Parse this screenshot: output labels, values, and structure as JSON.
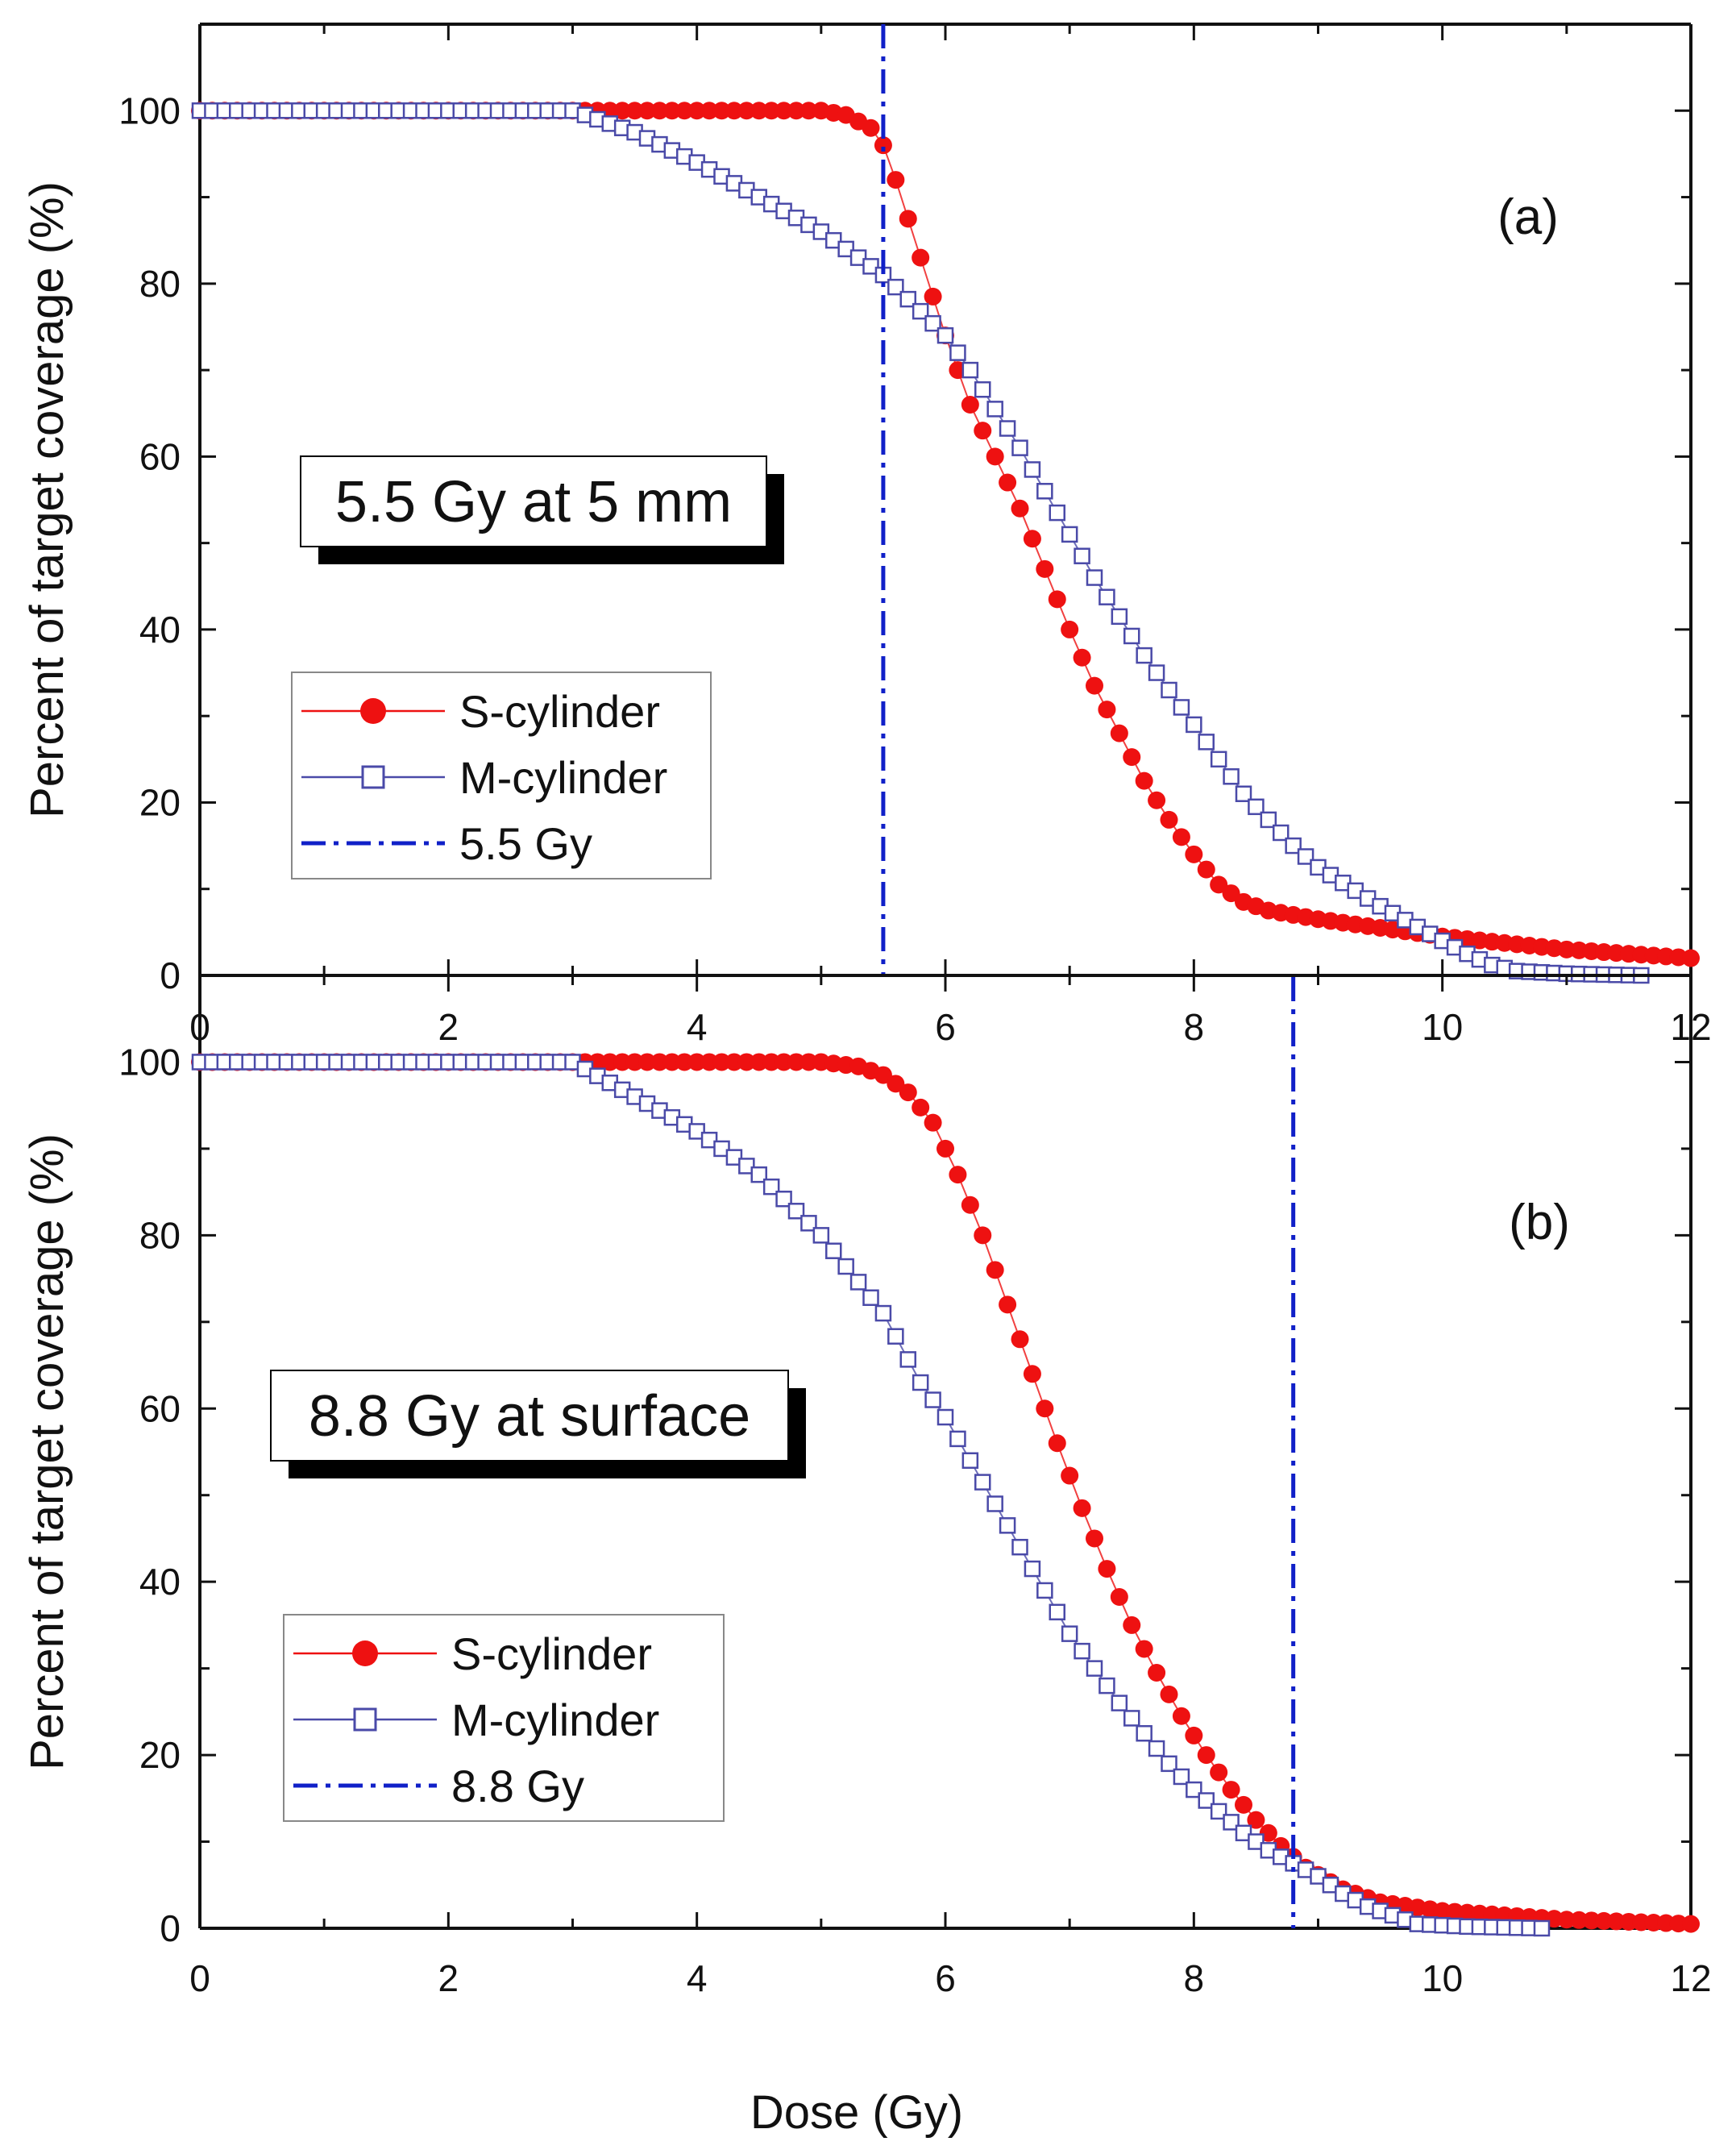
{
  "figure": {
    "xlabel": "Dose (Gy)"
  },
  "colors": {
    "s_series": "#ee1111",
    "m_series": "#4a4aa8",
    "ref_line": "#1020c8",
    "axis": "#111111"
  },
  "chart_data": [
    {
      "type": "line",
      "panel_label": "(a)",
      "callout": "5.5 Gy at 5 mm",
      "ylabel": "Percent of target coverage (%)",
      "xlim": [
        0,
        12
      ],
      "ylim": [
        0,
        110
      ],
      "x_ticks": [
        "0",
        "2",
        "4",
        "6",
        "8",
        "10",
        "12"
      ],
      "y_ticks": [
        "0",
        "20",
        "40",
        "60",
        "80",
        "100"
      ],
      "reference_line": {
        "x": 5.5,
        "label": "5.5 Gy"
      },
      "series": [
        {
          "name": "S-cylinder",
          "marker": "filled-circle",
          "x": [
            0,
            3.0,
            4.0,
            5.0,
            5.2,
            5.4,
            5.5,
            5.6,
            5.8,
            6.0,
            6.2,
            6.4,
            6.6,
            6.8,
            7.0,
            7.2,
            7.4,
            7.6,
            7.8,
            8.0,
            8.2,
            8.4,
            8.6,
            8.8,
            9.0,
            9.5,
            10.0,
            11.0,
            12.0
          ],
          "values": [
            100,
            100,
            100,
            100,
            99.5,
            98.0,
            96.0,
            92.0,
            83.0,
            74.0,
            66.0,
            60.0,
            54.0,
            47.0,
            40.0,
            33.5,
            28.0,
            22.5,
            18.0,
            14.0,
            10.5,
            8.5,
            7.5,
            7.0,
            6.5,
            5.5,
            4.5,
            3.0,
            2.0
          ]
        },
        {
          "name": "M-cylinder",
          "marker": "open-square",
          "x": [
            0,
            3.0,
            3.5,
            4.0,
            4.5,
            5.0,
            5.5,
            6.0,
            6.2,
            6.4,
            6.6,
            6.8,
            7.0,
            7.2,
            7.4,
            7.6,
            7.8,
            8.0,
            8.2,
            8.4,
            8.6,
            8.8,
            9.0,
            9.5,
            10.0,
            10.2,
            10.4,
            10.6,
            11.0,
            11.6
          ],
          "values": [
            100,
            100,
            97.5,
            94.0,
            90.0,
            86.0,
            81.0,
            74.0,
            70.0,
            65.5,
            61.0,
            56.0,
            51.0,
            46.0,
            41.5,
            37.0,
            33.0,
            29.0,
            25.0,
            21.0,
            18.0,
            15.0,
            12.5,
            8.0,
            4.0,
            2.5,
            1.2,
            0.5,
            0.2,
            0
          ]
        }
      ]
    },
    {
      "type": "line",
      "panel_label": "(b)",
      "callout": "8.8 Gy at surface",
      "ylabel": "Percent of target coverage (%)",
      "xlim": [
        0,
        12
      ],
      "ylim": [
        0,
        110
      ],
      "x_ticks": [
        "0",
        "2",
        "4",
        "6",
        "8",
        "10",
        "12"
      ],
      "y_ticks": [
        "0",
        "20",
        "40",
        "60",
        "80",
        "100"
      ],
      "reference_line": {
        "x": 8.8,
        "label": "8.8 Gy"
      },
      "series": [
        {
          "name": "S-cylinder",
          "marker": "filled-circle",
          "x": [
            0,
            3.0,
            4.0,
            5.0,
            5.3,
            5.5,
            5.7,
            5.9,
            6.1,
            6.3,
            6.5,
            6.7,
            6.9,
            7.1,
            7.3,
            7.5,
            7.7,
            7.9,
            8.1,
            8.3,
            8.5,
            8.7,
            8.9,
            9.2,
            9.5,
            10.0,
            10.5,
            11.0,
            12.0
          ],
          "values": [
            100,
            100,
            100,
            100,
            99.5,
            98.5,
            96.5,
            93.0,
            87.0,
            80.0,
            72.0,
            64.0,
            56.0,
            48.5,
            41.5,
            35.0,
            29.5,
            24.5,
            20.0,
            16.0,
            12.5,
            9.5,
            7.0,
            4.5,
            3.0,
            2.0,
            1.5,
            1.0,
            0.5
          ]
        },
        {
          "name": "M-cylinder",
          "marker": "open-square",
          "x": [
            0,
            3.0,
            3.5,
            4.0,
            4.5,
            5.0,
            5.5,
            5.8,
            6.0,
            6.2,
            6.4,
            6.6,
            6.8,
            7.0,
            7.2,
            7.4,
            7.6,
            7.8,
            8.0,
            8.2,
            8.4,
            8.6,
            8.8,
            9.0,
            9.2,
            9.4,
            9.6,
            9.8,
            10.2,
            10.8
          ],
          "values": [
            100,
            100,
            96.0,
            92.0,
            87.0,
            80.0,
            71.0,
            63.0,
            59.0,
            54.0,
            49.0,
            44.0,
            39.0,
            34.0,
            30.0,
            26.0,
            22.5,
            19.0,
            16.0,
            13.5,
            11.0,
            9.0,
            7.5,
            6.0,
            4.0,
            2.5,
            1.5,
            0.5,
            0.2,
            0
          ]
        }
      ]
    }
  ]
}
